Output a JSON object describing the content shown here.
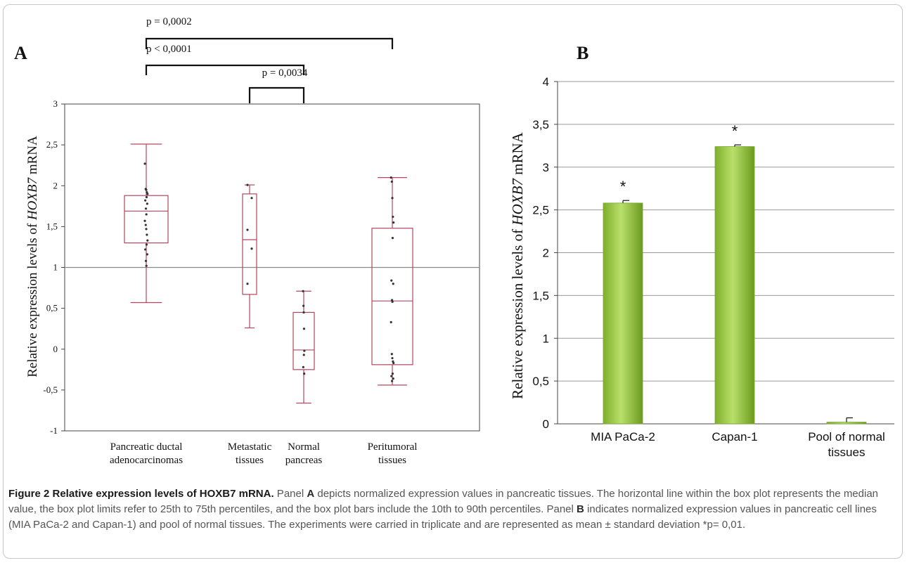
{
  "chart_data": [
    {
      "panel": "A",
      "type": "box",
      "ylabel_pre": "Relative expression  levels of ",
      "ylabel_gene": "HOXB7",
      "ylabel_post": " mRNA",
      "ylim": [
        -1,
        3
      ],
      "yticks": [
        "-1",
        "-0,5",
        "0",
        "0,5",
        "1",
        "1,5",
        "2",
        "2,5",
        "3"
      ],
      "reference_line": 1.0,
      "groups": [
        {
          "label": [
            "Pancreatic ductal",
            "adenocarcinomas"
          ],
          "whisker_low": 0.57,
          "q1": 1.3,
          "median": 1.69,
          "q3": 1.88,
          "whisker_high": 2.51,
          "points": [
            2.27,
            1.96,
            1.95,
            1.92,
            1.9,
            1.86,
            1.82,
            1.78,
            1.72,
            1.65,
            1.57,
            1.52,
            1.47,
            1.4,
            1.33,
            1.28,
            1.22,
            1.16,
            1.08,
            1.02
          ]
        },
        {
          "label": [
            "Metastatic",
            "tissues"
          ],
          "whisker_low": 0.26,
          "q1": 0.67,
          "median": 1.34,
          "q3": 1.9,
          "whisker_high": 2.01,
          "points": [
            2.01,
            1.85,
            1.46,
            1.23,
            0.8
          ]
        },
        {
          "label": [
            "Normal",
            "pancreas"
          ],
          "whisker_low": -0.66,
          "q1": -0.25,
          "median": -0.01,
          "q3": 0.45,
          "whisker_high": 0.71,
          "points": [
            0.71,
            0.53,
            0.45,
            0.25,
            -0.02,
            -0.07,
            -0.22,
            -0.3
          ]
        },
        {
          "label": [
            "Peritumoral",
            "tissues"
          ],
          "whisker_low": -0.44,
          "q1": -0.19,
          "median": 0.59,
          "q3": 1.48,
          "whisker_high": 2.1,
          "points": [
            2.1,
            2.05,
            1.85,
            1.62,
            1.55,
            1.36,
            0.84,
            0.8,
            0.6,
            0.58,
            0.33,
            -0.06,
            -0.11,
            -0.15,
            -0.17,
            -0.3,
            -0.33,
            -0.36,
            -0.39
          ]
        }
      ],
      "significance": [
        {
          "text": "p = 0,0002",
          "from": 0,
          "to": 3
        },
        {
          "text": "p < 0,0001",
          "from": 0,
          "to": 2
        },
        {
          "text": "p = 0,0034",
          "from": 1,
          "to": 2
        }
      ]
    },
    {
      "panel": "B",
      "type": "bar",
      "ylabel_pre": "Relative expression levels of ",
      "ylabel_gene": "HOXB7",
      "ylabel_post": " mRNA",
      "ylim": [
        0,
        4
      ],
      "yticks": [
        "0",
        "0,5",
        "1",
        "1,5",
        "2",
        "2,5",
        "3",
        "3,5",
        "4"
      ],
      "grid": true,
      "categories": [
        [
          "MIA PaCa-2"
        ],
        [
          "Capan-1"
        ],
        [
          "Pool of normal",
          "tissues"
        ]
      ],
      "values": [
        2.58,
        3.24,
        0.02
      ],
      "errors": [
        0.03,
        0.02,
        0.05
      ],
      "markers": [
        "*",
        "*",
        ""
      ]
    }
  ],
  "caption": {
    "title": "Figure 2 Relative expression levels of HOXB7 mRNA.",
    "p1": " Panel ",
    "panel_a": "A",
    "p2": " depicts normalized expression values in pancreatic tissues. The horizontal line within the box plot represents the median value, the box plot limits refer to 25th to 75th percentiles, and the box plot bars include the 10th to 90th percentiles. Panel ",
    "panel_b": "B",
    "p3": " indicates normalized expression values in pancreatic cell lines (MIA PaCa-2 and Capan-1) and pool of normal tissues. The experiments were carried in triplicate and are represented as mean ± standard deviation *p= 0,01."
  },
  "colors": {
    "box": "#b3475f",
    "point": "#333333",
    "refline": "#8a8a8a",
    "bar_light": "#b9e06a",
    "bar_dark": "#6b9a1e",
    "grid": "#9a9a9a"
  }
}
